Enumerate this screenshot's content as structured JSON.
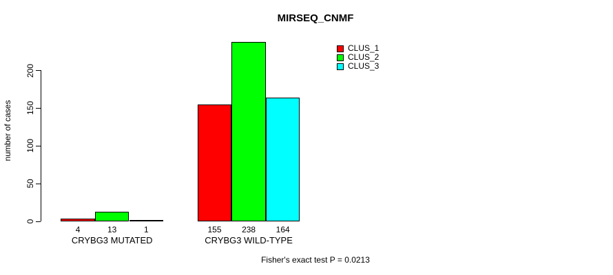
{
  "title": "MIRSEQ_CNMF",
  "footer": "Fisher's exact test P = 0.0213",
  "colors": {
    "clus_1": "#FF0000",
    "clus_2": "#00FF00",
    "clus_3": "#00FFFF",
    "axis": "#000000",
    "background": "#FFFFFF"
  },
  "chart_data": {
    "type": "bar",
    "title": "MIRSEQ_CNMF",
    "xlabel": "",
    "ylabel": "number of cases",
    "categories": [
      "CRYBG3 MUTATED",
      "CRYBG3 WILD-TYPE"
    ],
    "series": [
      {
        "name": "CLUS_1",
        "color": "#FF0000",
        "values": [
          4,
          155
        ]
      },
      {
        "name": "CLUS_2",
        "color": "#00FF00",
        "values": [
          13,
          238
        ]
      },
      {
        "name": "CLUS_3",
        "color": "#00FFFF",
        "values": [
          1,
          164
        ]
      }
    ],
    "bar_labels": [
      [
        4,
        13,
        1
      ],
      [
        155,
        238,
        164
      ]
    ],
    "yticks": [
      0,
      50,
      100,
      150,
      200
    ],
    "ylim": [
      0,
      240
    ],
    "grid": false,
    "legend_position": "top-right",
    "annotation": "Fisher's exact test P = 0.0213"
  }
}
